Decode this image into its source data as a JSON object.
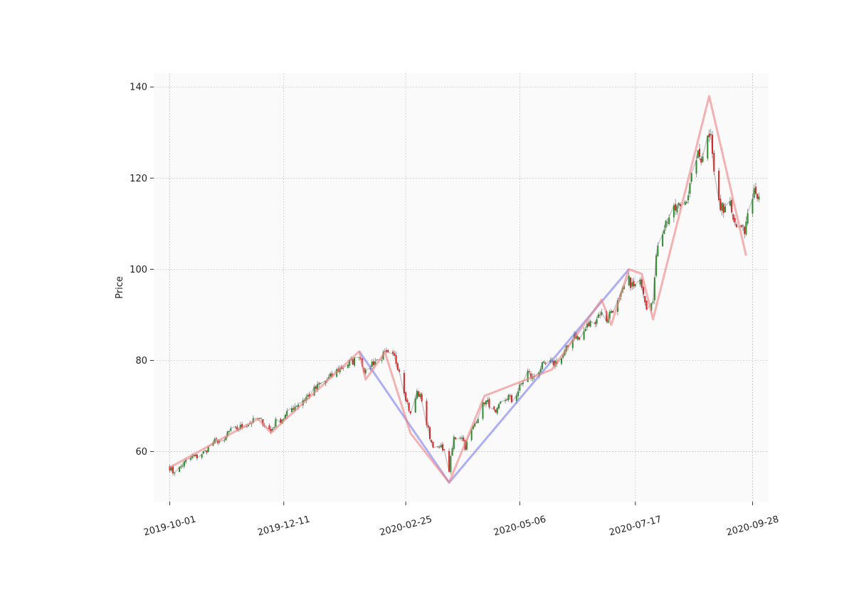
{
  "chart_data": {
    "type": "candlestick",
    "title": "",
    "xlabel": "",
    "ylabel": "Price",
    "x_range": [
      "2019-09-21",
      "2020-10-08"
    ],
    "ylim": [
      49,
      143
    ],
    "grid": true,
    "x_ticks": [
      "2019-10-01",
      "2019-12-11",
      "2020-02-25",
      "2020-05-06",
      "2020-07-17",
      "2020-09-28"
    ],
    "y_ticks": [
      60,
      80,
      100,
      120,
      140
    ],
    "colors": {
      "up": "#2e8b2e",
      "down": "#d62728",
      "wick": "#555555",
      "close_line": "#999999",
      "zigzag_fine": "#f08080",
      "zigzag_coarse": "#7b7bf0",
      "plot_bg": "#fafafa",
      "grid": "#cccccc"
    },
    "close_path": [
      [
        "2019-10-01",
        56.5
      ],
      [
        "2019-10-03",
        55.5
      ],
      [
        "2019-10-07",
        56.3
      ],
      [
        "2019-10-10",
        57.5
      ],
      [
        "2019-10-15",
        58.8
      ],
      [
        "2019-10-18",
        58.9
      ],
      [
        "2019-10-23",
        60.0
      ],
      [
        "2019-10-28",
        62.0
      ],
      [
        "2019-10-31",
        62.4
      ],
      [
        "2019-11-04",
        61.8
      ],
      [
        "2019-11-06",
        64.2
      ],
      [
        "2019-11-12",
        65.0
      ],
      [
        "2019-11-18",
        66.0
      ],
      [
        "2019-11-22",
        66.6
      ],
      [
        "2019-11-25",
        67.2
      ],
      [
        "2019-11-28",
        66.5
      ],
      [
        "2019-12-03",
        64.4
      ],
      [
        "2019-12-06",
        66.5
      ],
      [
        "2019-12-11",
        67.4
      ],
      [
        "2019-12-16",
        69.5
      ],
      [
        "2019-12-20",
        70.5
      ],
      [
        "2019-12-27",
        72.5
      ],
      [
        "2020-01-02",
        74.5
      ],
      [
        "2020-01-08",
        76.0
      ],
      [
        "2020-01-14",
        78.0
      ],
      [
        "2020-01-21",
        79.5
      ],
      [
        "2020-01-24",
        80.0
      ],
      [
        "2020-01-27",
        81.5
      ],
      [
        "2020-01-31",
        77.0
      ],
      [
        "2020-02-04",
        79.5
      ],
      [
        "2020-02-07",
        80.0
      ],
      [
        "2020-02-12",
        81.3
      ],
      [
        "2020-02-18",
        80.5
      ],
      [
        "2020-02-21",
        78.0
      ],
      [
        "2020-02-25",
        72.0
      ],
      [
        "2020-02-28",
        68.0
      ],
      [
        "2020-03-03",
        73.0
      ],
      [
        "2020-03-06",
        71.5
      ],
      [
        "2020-03-09",
        66.0
      ],
      [
        "2020-03-12",
        62.0
      ],
      [
        "2020-03-16",
        60.5
      ],
      [
        "2020-03-19",
        61.0
      ],
      [
        "2020-03-23",
        56.0
      ],
      [
        "2020-03-26",
        63.0
      ],
      [
        "2020-03-31",
        63.5
      ],
      [
        "2020-04-02",
        61.0
      ],
      [
        "2020-04-06",
        64.5
      ],
      [
        "2020-04-09",
        67.0
      ],
      [
        "2020-04-14",
        71.0
      ],
      [
        "2020-04-17",
        70.5
      ],
      [
        "2020-04-21",
        68.0
      ],
      [
        "2020-04-24",
        70.5
      ],
      [
        "2020-04-29",
        72.0
      ],
      [
        "2020-05-01",
        71.0
      ],
      [
        "2020-05-06",
        74.0
      ],
      [
        "2020-05-11",
        77.5
      ],
      [
        "2020-05-14",
        76.0
      ],
      [
        "2020-05-19",
        78.5
      ],
      [
        "2020-05-22",
        79.0
      ],
      [
        "2020-05-27",
        79.5
      ],
      [
        "2020-06-01",
        80.5
      ],
      [
        "2020-06-05",
        83.0
      ],
      [
        "2020-06-09",
        86.0
      ],
      [
        "2020-06-12",
        84.5
      ],
      [
        "2020-06-17",
        87.5
      ],
      [
        "2020-06-22",
        89.0
      ],
      [
        "2020-06-25",
        90.5
      ],
      [
        "2020-06-29",
        89.0
      ],
      [
        "2020-07-02",
        91.0
      ],
      [
        "2020-07-07",
        93.0
      ],
      [
        "2020-07-10",
        96.0
      ],
      [
        "2020-07-13",
        97.5
      ],
      [
        "2020-07-16",
        96.0
      ],
      [
        "2020-07-21",
        97.0
      ],
      [
        "2020-07-24",
        92.0
      ],
      [
        "2020-07-28",
        94.0
      ],
      [
        "2020-07-31",
        106.0
      ],
      [
        "2020-08-04",
        109.5
      ],
      [
        "2020-08-07",
        111.5
      ],
      [
        "2020-08-12",
        113.5
      ],
      [
        "2020-08-17",
        115.0
      ],
      [
        "2020-08-20",
        118.0
      ],
      [
        "2020-08-24",
        125.0
      ],
      [
        "2020-08-27",
        124.5
      ],
      [
        "2020-08-31",
        129.0
      ],
      [
        "2020-09-02",
        131.0
      ],
      [
        "2020-09-04",
        121.0
      ],
      [
        "2020-09-08",
        113.0
      ],
      [
        "2020-09-10",
        113.5
      ],
      [
        "2020-09-14",
        115.5
      ],
      [
        "2020-09-17",
        110.5
      ],
      [
        "2020-09-21",
        110.0
      ],
      [
        "2020-09-23",
        107.0
      ],
      [
        "2020-09-25",
        112.5
      ],
      [
        "2020-09-28",
        114.5
      ]
    ],
    "zigzag_fine": [
      [
        "2019-10-01",
        56.5
      ],
      [
        "2019-11-25",
        67.2
      ],
      [
        "2019-12-03",
        64.1
      ],
      [
        "2020-01-27",
        82.0
      ],
      [
        "2020-01-31",
        75.8
      ],
      [
        "2020-02-12",
        81.8
      ],
      [
        "2020-02-28",
        64.0
      ],
      [
        "2020-03-23",
        53.2
      ],
      [
        "2020-04-14",
        72.2
      ],
      [
        "2020-05-26",
        78.0
      ],
      [
        "2020-06-26",
        93.3
      ],
      [
        "2020-07-02",
        87.8
      ],
      [
        "2020-07-13",
        100.0
      ],
      [
        "2020-07-21",
        99.0
      ],
      [
        "2020-07-28",
        89.0
      ],
      [
        "2020-09-01",
        138.0
      ],
      [
        "2020-09-24",
        103.0
      ]
    ],
    "zigzag_coarse": [
      [
        "2020-01-27",
        82.0
      ],
      [
        "2020-03-23",
        53.2
      ],
      [
        "2020-07-13",
        100.0
      ]
    ],
    "candle_stats": {
      "count": 251,
      "start": "2019-10-01",
      "end": "2020-09-28",
      "open": 56.8,
      "high": 138.0,
      "low": 53.2,
      "close": 116.0
    }
  }
}
